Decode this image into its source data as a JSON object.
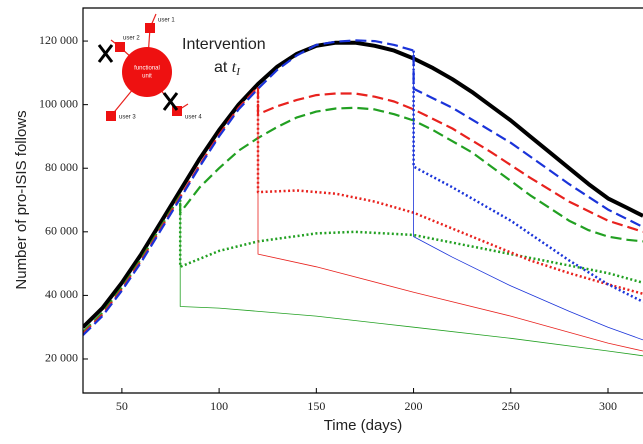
{
  "chart_data": {
    "type": "line",
    "xlabel": "Time (days)",
    "ylabel": "Number of pro-ISIS follows",
    "xlim": [
      30,
      318
    ],
    "ylim": [
      9300,
      130400
    ],
    "xticks": [
      50,
      100,
      150,
      200,
      250,
      300
    ],
    "yticks": [
      {
        "value": 20000,
        "label": "20 000"
      },
      {
        "value": 40000,
        "label": "40 000"
      },
      {
        "value": 60000,
        "label": "60 000"
      },
      {
        "value": 80000,
        "label": "80 000"
      },
      {
        "value": 100000,
        "label": "100 000"
      },
      {
        "value": 120000,
        "label": "120 000"
      }
    ],
    "annotations": {
      "line1": "Intervention",
      "line2": "at",
      "var": "t",
      "sub": "I"
    },
    "inset": {
      "users": [
        "user 1",
        "user 2",
        "user 3",
        "user 4"
      ],
      "unit": [
        "functional",
        "unit"
      ]
    },
    "series": [
      {
        "color": "#000000",
        "style": "solid",
        "width": 4,
        "x": [
          30,
          40,
          50,
          60,
          70,
          80,
          90,
          100,
          110,
          120,
          130,
          140,
          150,
          160,
          170,
          180,
          190,
          200,
          210,
          220,
          230,
          240,
          250,
          260,
          270,
          280,
          290,
          300,
          310,
          318
        ],
        "values": [
          30000,
          36000,
          44000,
          53000,
          63000,
          73000,
          83000,
          92000,
          100000,
          106500,
          112000,
          116000,
          118500,
          119500,
          119500,
          118500,
          117000,
          114500,
          111500,
          108000,
          104000,
          99500,
          95000,
          90000,
          85000,
          80000,
          75000,
          70500,
          67500,
          65000
        ]
      },
      {
        "color": "#22a022",
        "style": "dashed",
        "width": 2.2,
        "x": [
          30,
          40,
          50,
          60,
          70,
          80,
          80,
          90,
          100,
          110,
          120,
          130,
          140,
          150,
          160,
          170,
          180,
          190,
          200,
          210,
          220,
          230,
          240,
          250,
          260,
          270,
          280,
          290,
          300,
          310,
          318
        ],
        "values": [
          28500,
          34500,
          42500,
          51500,
          61500,
          71500,
          66000,
          74000,
          80000,
          85500,
          89500,
          93000,
          96000,
          97800,
          98800,
          99000,
          98500,
          97000,
          95000,
          92000,
          88500,
          85000,
          80500,
          76000,
          71500,
          67500,
          63500,
          60500,
          58500,
          57500,
          57000
        ]
      },
      {
        "color": "#22a022",
        "style": "dotted",
        "width": 2.5,
        "x": [
          80,
          80,
          100,
          120,
          150,
          170,
          200,
          250,
          300,
          318
        ],
        "values": [
          71500,
          49000,
          54000,
          57000,
          59500,
          60000,
          59000,
          53000,
          47000,
          44000
        ]
      },
      {
        "color": "#22a022",
        "style": "solid",
        "width": 0.8,
        "x": [
          80,
          80,
          100,
          150,
          200,
          250,
          300,
          318
        ],
        "values": [
          71500,
          36500,
          36000,
          33500,
          30000,
          26500,
          22500,
          21000
        ]
      },
      {
        "color": "#e8221e",
        "style": "dashed",
        "width": 2.2,
        "x": [
          30,
          40,
          50,
          60,
          70,
          80,
          90,
          100,
          110,
          120,
          120,
          130,
          140,
          150,
          160,
          170,
          180,
          190,
          200,
          220,
          240,
          260,
          280,
          300,
          318
        ],
        "values": [
          28000,
          34000,
          42000,
          51000,
          61000,
          71000,
          81000,
          90500,
          99000,
          105500,
          97000,
          99500,
          101500,
          103000,
          103500,
          103500,
          102500,
          101000,
          98500,
          92500,
          85000,
          77000,
          69500,
          63500,
          60000
        ]
      },
      {
        "color": "#e8221e",
        "style": "dotted",
        "width": 2.5,
        "x": [
          120,
          120,
          140,
          160,
          180,
          200,
          220,
          240,
          260,
          280,
          300,
          318
        ],
        "values": [
          105500,
          72500,
          73000,
          72000,
          69500,
          66000,
          61000,
          56000,
          51000,
          47000,
          43500,
          40500
        ]
      },
      {
        "color": "#e8221e",
        "style": "solid",
        "width": 0.8,
        "x": [
          120,
          120,
          150,
          200,
          250,
          300,
          318
        ],
        "values": [
          105500,
          53000,
          49000,
          41000,
          33500,
          25000,
          22500
        ]
      },
      {
        "color": "#1a33d9",
        "style": "dashed",
        "width": 2.2,
        "x": [
          30,
          40,
          50,
          60,
          70,
          80,
          90,
          100,
          110,
          120,
          130,
          140,
          150,
          160,
          170,
          180,
          190,
          200,
          200,
          220,
          250,
          280,
          300,
          318
        ],
        "values": [
          27500,
          33500,
          41500,
          50500,
          60500,
          70500,
          80500,
          90000,
          98500,
          105000,
          111000,
          115500,
          118800,
          119800,
          120200,
          120000,
          118800,
          117000,
          105000,
          99000,
          88000,
          75000,
          67000,
          61500
        ]
      },
      {
        "color": "#1a33d9",
        "style": "dotted",
        "width": 2.5,
        "x": [
          200,
          200,
          220,
          250,
          280,
          300,
          318
        ],
        "values": [
          117000,
          80500,
          74000,
          63500,
          51000,
          43500,
          38000
        ]
      },
      {
        "color": "#1a33d9",
        "style": "solid",
        "width": 0.8,
        "x": [
          200,
          200,
          220,
          250,
          280,
          300,
          318
        ],
        "values": [
          117000,
          58500,
          52000,
          43000,
          35000,
          30000,
          26000
        ]
      }
    ]
  }
}
